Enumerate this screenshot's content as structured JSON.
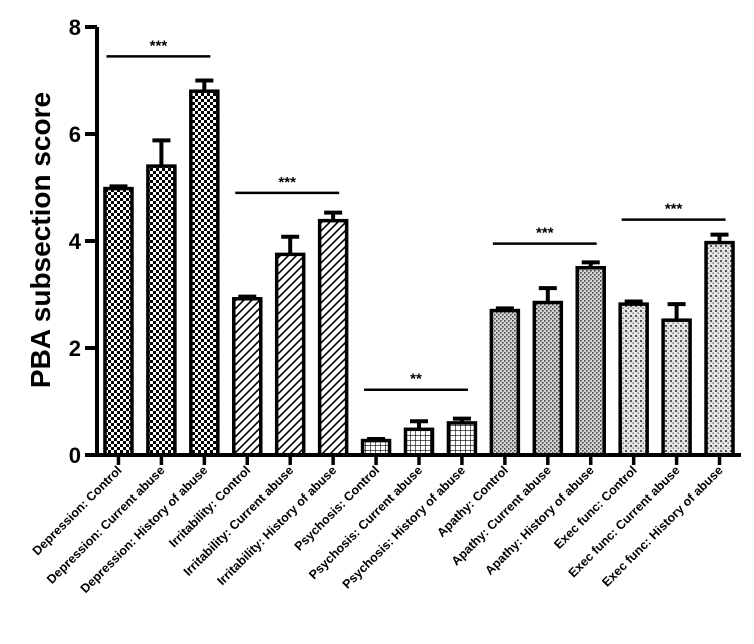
{
  "chart_data": {
    "type": "bar",
    "title": "",
    "xlabel": "",
    "ylabel": "PBA subsection score",
    "ylim": [
      0,
      8
    ],
    "yticks": [
      0,
      2,
      4,
      6,
      8
    ],
    "grid": false,
    "legend": "none",
    "categories": [
      "Depression: Control",
      "Depression: Current abuse",
      "Depression: History of abuse",
      "Irritability: Control",
      "Irritability: Current abuse",
      "Irritability: History of abuse",
      "Psychosis: Control",
      "Psychosis: Current abuse",
      "Psychosis: History of abuse",
      "Apathy: Control",
      "Apathy: Current abuse",
      "Apathy: History of abuse",
      "Exec func: Control",
      "Exec func: Current abuse",
      "Exec func: History of abuse"
    ],
    "values": [
      4.98,
      5.4,
      6.8,
      2.92,
      3.75,
      4.38,
      0.27,
      0.48,
      0.6,
      2.7,
      2.85,
      3.5,
      2.82,
      2.52,
      3.97
    ],
    "errors": [
      0.04,
      0.48,
      0.2,
      0.04,
      0.33,
      0.15,
      0.03,
      0.15,
      0.08,
      0.04,
      0.27,
      0.1,
      0.05,
      0.3,
      0.15
    ],
    "patterns": [
      "check",
      "check",
      "check",
      "diag",
      "diag",
      "diag",
      "grid",
      "grid",
      "grid",
      "dots",
      "dots",
      "dots",
      "dots2",
      "dots2",
      "dots2"
    ],
    "significance": [
      {
        "label": "***",
        "from": 0,
        "to": 2,
        "y": 7.45
      },
      {
        "label": "***",
        "from": 3,
        "to": 5,
        "y": 4.9
      },
      {
        "label": "**",
        "from": 6,
        "to": 8,
        "y": 1.22
      },
      {
        "label": "***",
        "from": 9,
        "to": 11,
        "y": 3.95
      },
      {
        "label": "***",
        "from": 12,
        "to": 14,
        "y": 4.4
      }
    ]
  }
}
